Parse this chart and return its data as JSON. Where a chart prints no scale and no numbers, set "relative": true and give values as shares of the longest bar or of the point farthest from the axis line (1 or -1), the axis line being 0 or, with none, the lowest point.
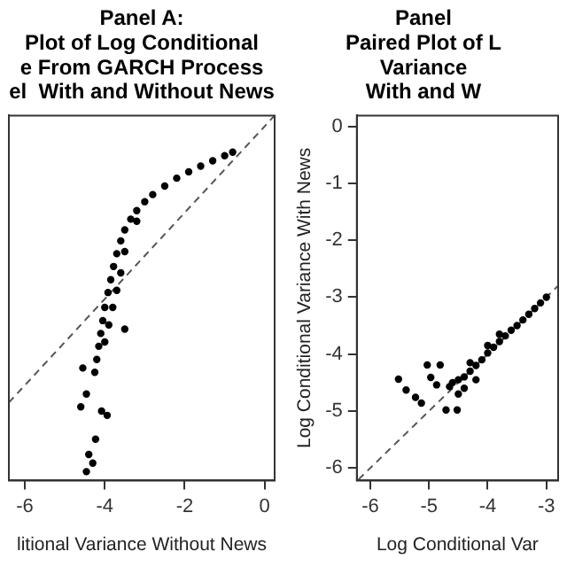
{
  "chart_data": [
    {
      "type": "scatter",
      "title": "Panel A:\nPlot of Log Conditional\ne From GARCH Process\nel  With and Without News",
      "xlabel": "litional Variance Without News",
      "xlim": [
        -6.4,
        0.25
      ],
      "xticks": [
        -6,
        -4,
        -2,
        0
      ],
      "relative": true,
      "series": [
        {
          "type": "scatter",
          "marker": "circle",
          "color": "#000000",
          "x": [
            -0.8,
            -1.0,
            -1.3,
            -1.6,
            -1.9,
            -2.2,
            -2.5,
            -2.8,
            -3.0,
            -3.2,
            -3.35,
            -3.5,
            -3.6,
            -3.7,
            -3.78,
            -3.85,
            -3.92,
            -4.0,
            -4.05,
            -4.1,
            -4.15,
            -4.2,
            -4.25,
            -3.2,
            -3.5,
            -3.6,
            -3.7,
            -3.8,
            -3.9,
            -4.0,
            -3.5,
            -4.55,
            -4.46,
            -4.08,
            -4.23,
            -4.4,
            -4.3,
            -4.46,
            -3.94,
            -4.6
          ],
          "values": [
            0.897,
            0.887,
            0.873,
            0.858,
            0.842,
            0.824,
            0.802,
            0.778,
            0.758,
            0.733,
            0.709,
            0.679,
            0.648,
            0.612,
            0.576,
            0.539,
            0.503,
            0.461,
            0.424,
            0.388,
            0.352,
            0.315,
            0.279,
            0.703,
            0.618,
            0.558,
            0.509,
            0.461,
            0.412,
            0.364,
            0.4,
            0.291,
            0.218,
            0.17,
            0.091,
            0.048,
            0.024,
            0,
            0.158,
            0.182
          ]
        },
        {
          "type": "line",
          "marker": "none",
          "color": "#555555",
          "line_style": "dashed",
          "x": [
            -6.4,
            0.25
          ],
          "values": [
            0.194,
            1
          ]
        }
      ]
    },
    {
      "type": "scatter",
      "title": "Panel\nPaired Plot of L\nVariance\nWith and W",
      "xlabel": "Log Conditional Var",
      "ylabel": "Log Conditional Variance With News",
      "xlim": [
        -6.23,
        -2.8
      ],
      "ylim": [
        -6.22,
        0.19
      ],
      "xticks": [
        -6,
        -5,
        -4,
        -3
      ],
      "yticks": [
        0,
        -1,
        -2,
        -3,
        -4,
        -5,
        -6
      ],
      "series": [
        {
          "type": "scatter",
          "marker": "circle",
          "color": "#000000",
          "x": [
            -5.52,
            -5.39,
            -5.23,
            -5.13,
            -4.97,
            -4.87,
            -5.03,
            -4.81,
            -4.71,
            -4.52,
            -4.65,
            -4.6,
            -4.5,
            -4.4,
            -4.3,
            -4.2,
            -4.1,
            -4.0,
            -3.9,
            -3.8,
            -3.7,
            -3.6,
            -3.5,
            -3.4,
            -3.3,
            -3.2,
            -3.1,
            -3.0,
            -4.3,
            -4.0,
            -3.8,
            -4.4,
            -4.2,
            -4.5
          ],
          "values": [
            -4.44,
            -4.63,
            -4.76,
            -4.86,
            -4.41,
            -4.54,
            -4.19,
            -4.19,
            -4.98,
            -4.98,
            -4.57,
            -4.5,
            -4.45,
            -4.4,
            -4.3,
            -4.2,
            -4.1,
            -3.98,
            -3.88,
            -3.78,
            -3.68,
            -3.58,
            -3.5,
            -3.4,
            -3.3,
            -3.2,
            -3.1,
            -3.0,
            -4.15,
            -3.85,
            -3.65,
            -4.6,
            -4.45,
            -4.7
          ]
        },
        {
          "type": "line",
          "marker": "none",
          "color": "#555555",
          "line_style": "dashed",
          "x": [
            -6.2,
            -2.8
          ],
          "values": [
            -6.2,
            -2.8
          ]
        }
      ]
    }
  ]
}
